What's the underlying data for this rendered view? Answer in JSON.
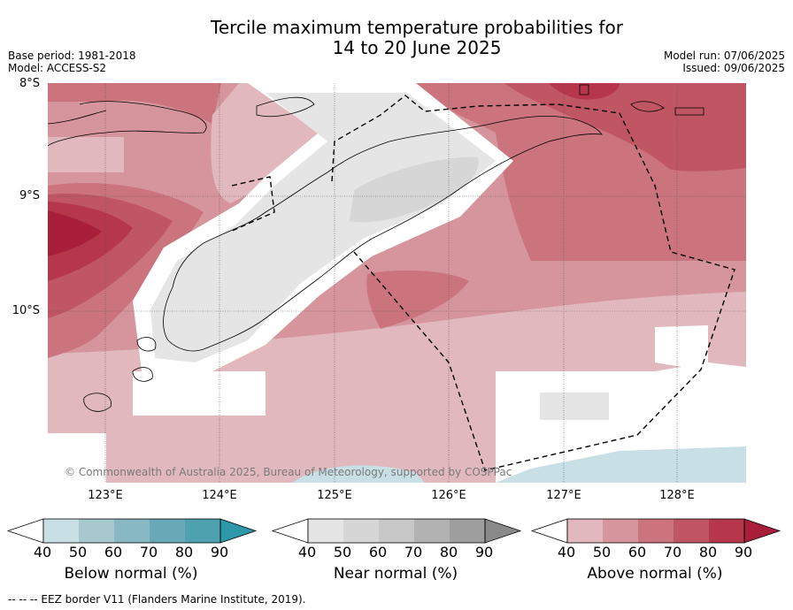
{
  "title_line1": "Tercile maximum temperature probabilities for",
  "title_line2": "14 to 20 June 2025",
  "meta_left": {
    "base_period": "Base period: 1981-2018",
    "model": "Model: ACCESS-S2"
  },
  "meta_right": {
    "model_run": "Model run: 07/06/2025",
    "issued": "Issued: 09/06/2025"
  },
  "map": {
    "lat_ticks": [
      "8°S",
      "9°S",
      "10°S"
    ],
    "lon_ticks": [
      "123°E",
      "124°E",
      "125°E",
      "126°E",
      "127°E",
      "128°E"
    ],
    "copyright": "© Commonwealth of Australia 2025, Bureau of Meteorology, supported by COSPPac"
  },
  "legend": {
    "below": {
      "label": "Below normal (%)",
      "ticks": [
        "40",
        "50",
        "60",
        "70",
        "80",
        "90"
      ],
      "colors": [
        "#c7dfe5",
        "#a8c8cf",
        "#88b8c3",
        "#69a8b7",
        "#4ea2b0",
        "#2e98ab"
      ]
    },
    "near": {
      "label": "Near normal (%)",
      "ticks": [
        "40",
        "50",
        "60",
        "70",
        "80",
        "90"
      ],
      "colors": [
        "#e5e5e5",
        "#d6d6d6",
        "#c7c7c7",
        "#b2b2b2",
        "#9e9e9e",
        "#8a8a8a"
      ]
    },
    "above": {
      "label": "Above normal (%)",
      "ticks": [
        "40",
        "50",
        "60",
        "70",
        "80",
        "90"
      ],
      "colors": [
        "#e0b8bd",
        "#d6959c",
        "#cb747e",
        "#c05564",
        "#b6364b",
        "#a91f3b"
      ]
    }
  },
  "footnote": "--  --  -- EEZ border V11 (Flanders Marine Institute, 2019)."
}
